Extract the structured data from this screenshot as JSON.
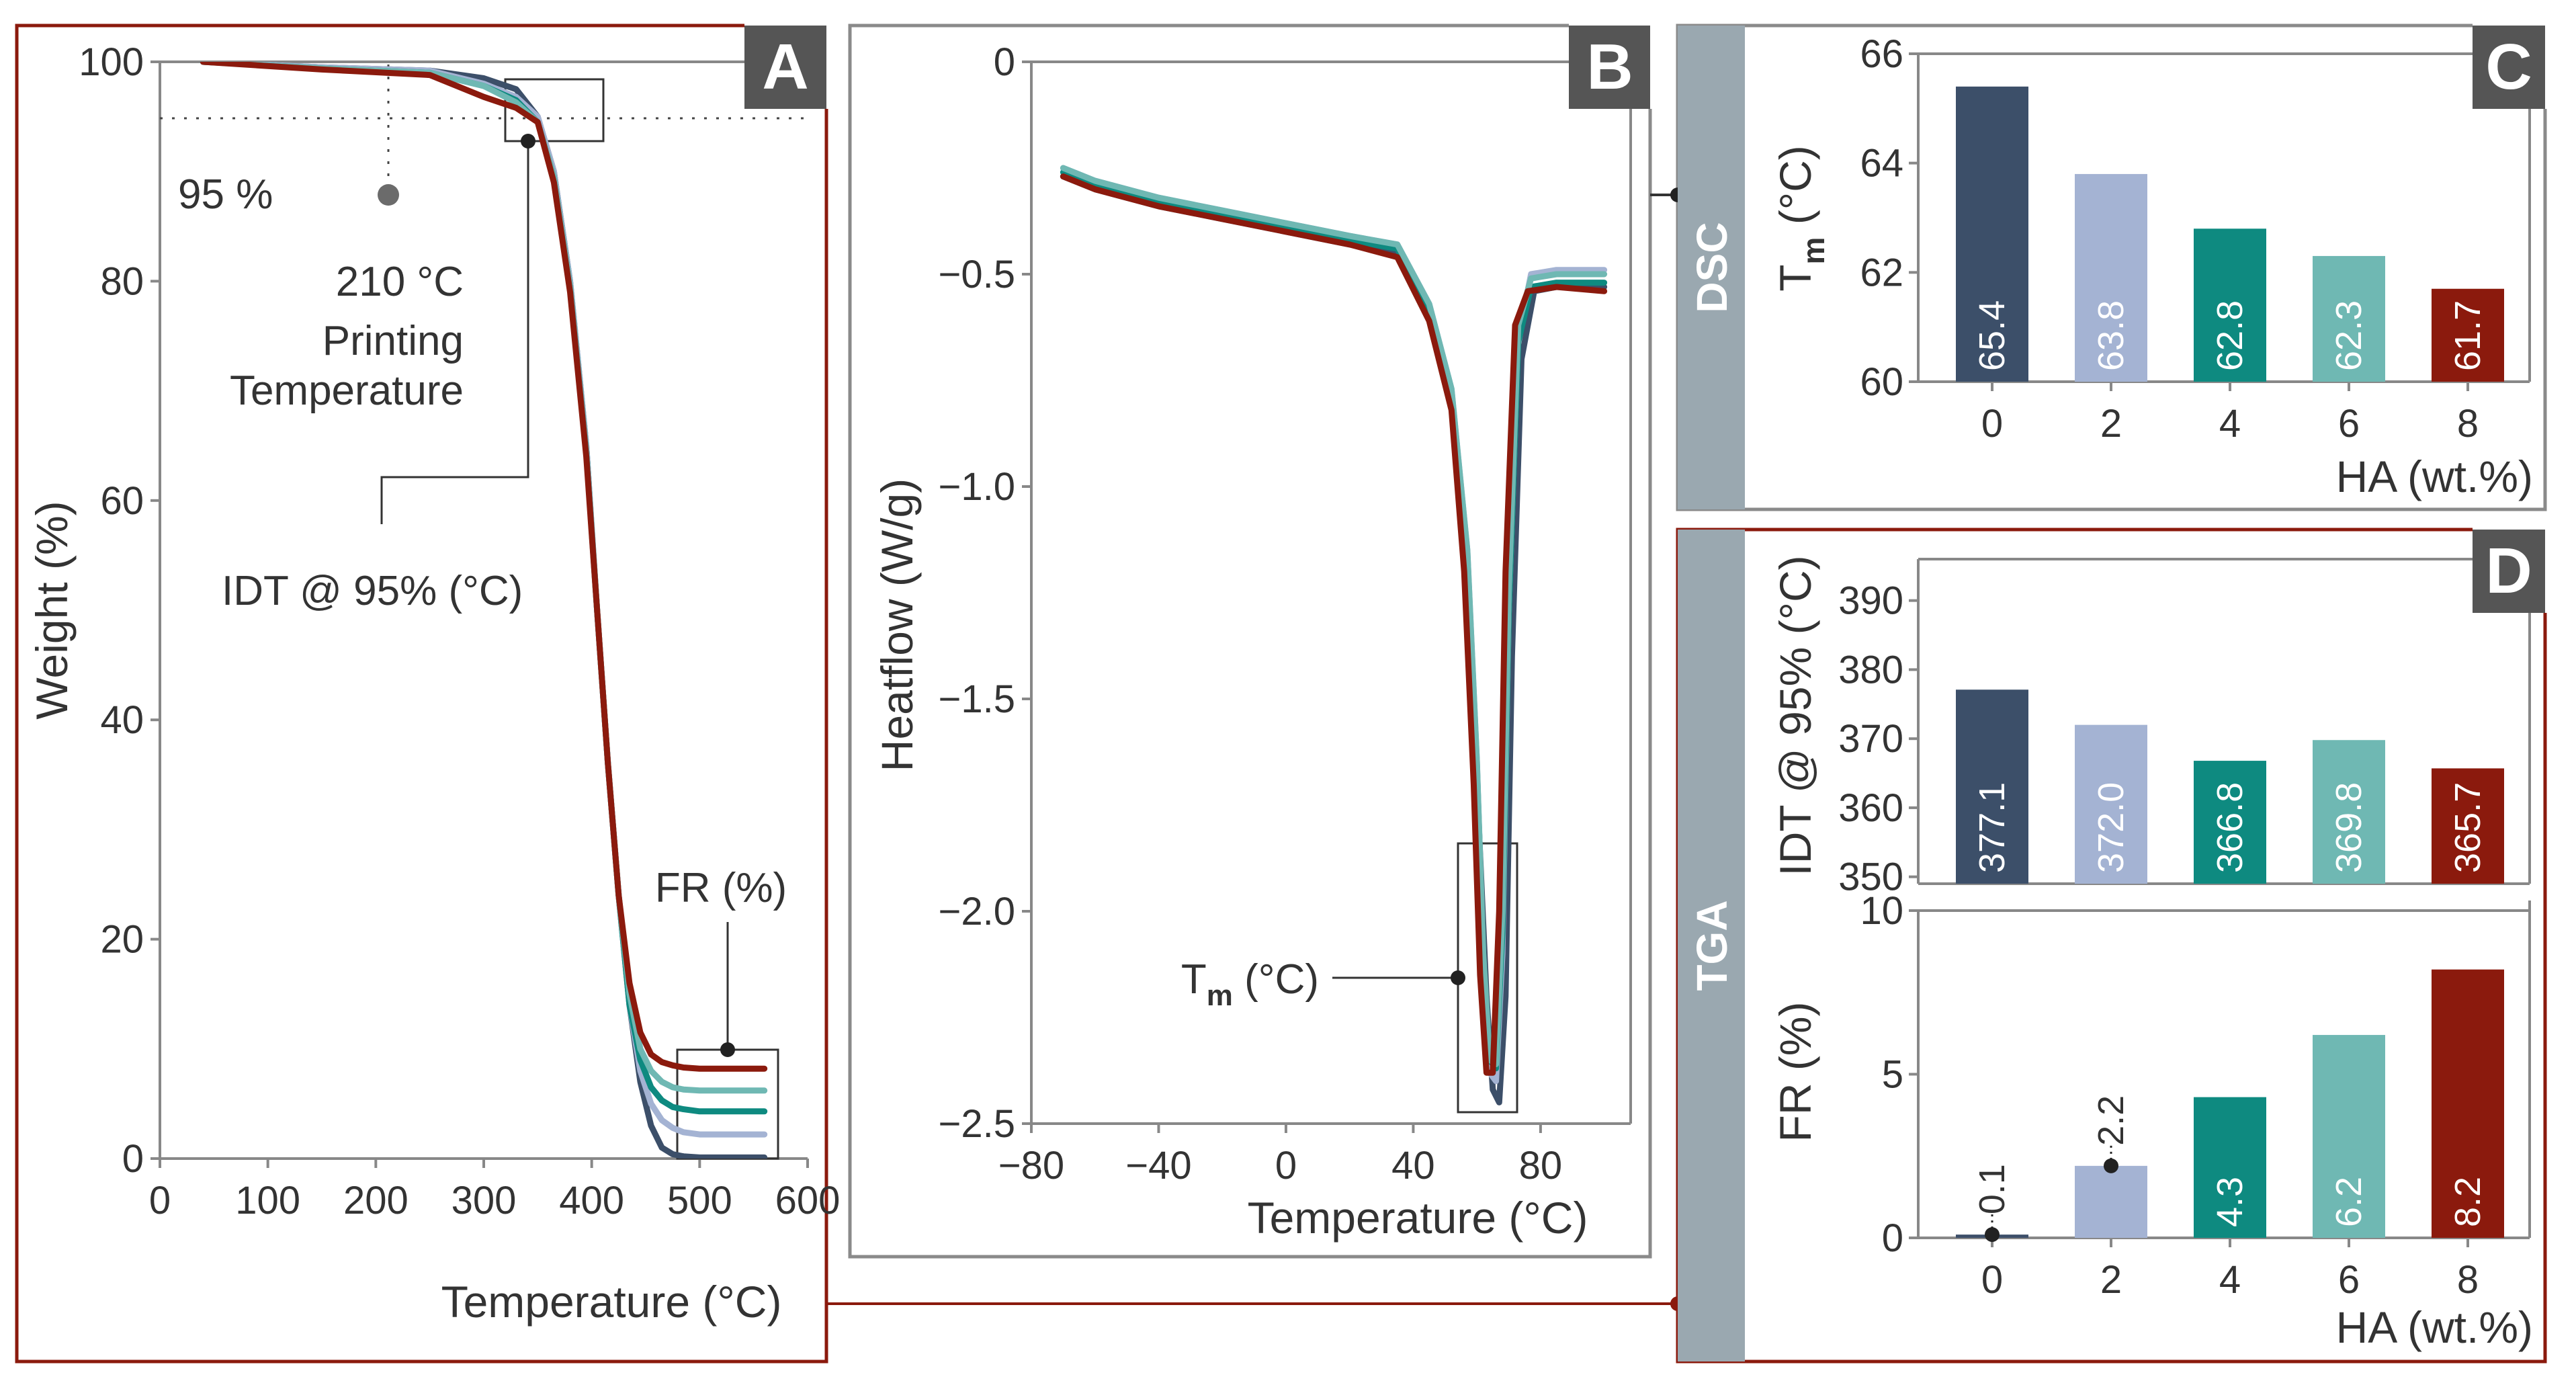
{
  "colors": {
    "hc0": "#3c4f69",
    "hc2": "#a4b3d3",
    "hc4": "#0e8a80",
    "hc6": "#6fb8b3",
    "hc8": "#8b1a0d",
    "frame_red": "#8b1a0d",
    "frame_gray": "#8a8a8a",
    "strip": "#9aa8b0",
    "badge": "#555555"
  },
  "chart_data": [
    {
      "panel": "A",
      "type": "line",
      "xlabel": "Temperature (°C)",
      "ylabel": "Weight (%)",
      "xlim": [
        0,
        600
      ],
      "ylim": [
        0,
        100
      ],
      "xticks": [
        "0",
        "100",
        "200",
        "300",
        "400",
        "500",
        "600"
      ],
      "yticks": [
        "0",
        "20",
        "40",
        "60",
        "80",
        "100"
      ],
      "series": [
        {
          "name": "0 wt.%",
          "x": [
            40,
            150,
            250,
            300,
            330,
            350,
            365,
            380,
            395,
            405,
            415,
            425,
            435,
            445,
            455,
            465,
            475,
            485,
            500,
            560
          ],
          "y": [
            100,
            99.5,
            99.2,
            98.5,
            97.5,
            95,
            90,
            80,
            65,
            50,
            36,
            24,
            14,
            7,
            3,
            1,
            0.4,
            0.2,
            0.1,
            0.1
          ]
        },
        {
          "name": "2 wt.%",
          "x": [
            40,
            150,
            250,
            300,
            330,
            350,
            365,
            380,
            395,
            405,
            415,
            425,
            435,
            445,
            455,
            465,
            475,
            485,
            500,
            560
          ],
          "y": [
            100,
            99.5,
            99.2,
            98,
            96.8,
            95,
            90,
            80,
            65,
            50,
            36,
            24,
            14,
            8,
            5,
            3.5,
            2.8,
            2.4,
            2.2,
            2.2
          ]
        },
        {
          "name": "4 wt.%",
          "x": [
            40,
            150,
            250,
            300,
            330,
            350,
            365,
            380,
            395,
            405,
            415,
            425,
            435,
            445,
            455,
            465,
            475,
            485,
            500,
            560
          ],
          "y": [
            100,
            99.4,
            99.0,
            97.8,
            96.5,
            94.5,
            89.5,
            79.5,
            64.5,
            50,
            36,
            24,
            14,
            9,
            6.5,
            5.3,
            4.7,
            4.5,
            4.3,
            4.3
          ]
        },
        {
          "name": "6 wt.%",
          "x": [
            40,
            150,
            250,
            300,
            330,
            350,
            365,
            380,
            395,
            405,
            415,
            425,
            435,
            445,
            455,
            465,
            475,
            485,
            500,
            560
          ],
          "y": [
            100,
            99.4,
            99.0,
            97.8,
            96.3,
            94.5,
            89.5,
            79.5,
            64.5,
            50,
            36,
            24,
            15,
            10,
            8,
            7,
            6.5,
            6.3,
            6.2,
            6.2
          ]
        },
        {
          "name": "8 wt.%",
          "x": [
            40,
            150,
            250,
            300,
            330,
            350,
            365,
            380,
            395,
            405,
            415,
            425,
            435,
            445,
            455,
            465,
            475,
            485,
            500,
            560
          ],
          "y": [
            100,
            99.3,
            98.8,
            96.8,
            95.8,
            94.5,
            89,
            79,
            64,
            50,
            36,
            24,
            16,
            11.5,
            9.5,
            8.8,
            8.5,
            8.3,
            8.2,
            8.2
          ]
        }
      ],
      "annotations": {
        "threshold": "95 %",
        "printing_temp": "210 °C",
        "printing_label_1": "Printing",
        "printing_label_2": "Temperature",
        "idt": "IDT @ 95% (°C)",
        "fr": "FR (%)"
      }
    },
    {
      "panel": "B",
      "type": "line",
      "xlabel": "Temperature (°C)",
      "ylabel": "Heatflow (W/g)",
      "xlim": [
        -80,
        110
      ],
      "ylim": [
        -2.5,
        0
      ],
      "xticks": [
        "−80",
        "−40",
        "0",
        "40",
        "80"
      ],
      "yticks": [
        "0",
        "−0.5",
        "−1.0",
        "−1.5",
        "−2.0",
        "−2.5"
      ],
      "series": [
        {
          "name": "0 wt.%",
          "x": [
            -70,
            -60,
            -40,
            -20,
            0,
            20,
            35,
            45,
            52,
            57,
            60,
            63,
            65,
            67,
            69,
            71,
            74,
            78,
            85,
            100
          ],
          "y": [
            -0.27,
            -0.3,
            -0.34,
            -0.37,
            -0.4,
            -0.43,
            -0.45,
            -0.6,
            -0.8,
            -1.2,
            -1.7,
            -2.2,
            -2.42,
            -2.45,
            -2.2,
            -1.4,
            -0.7,
            -0.54,
            -0.53,
            -0.53
          ]
        },
        {
          "name": "2 wt.%",
          "x": [
            -70,
            -60,
            -40,
            -20,
            0,
            20,
            35,
            45,
            52,
            57,
            60,
            62,
            64,
            66,
            68,
            70,
            73,
            77,
            85,
            100
          ],
          "y": [
            -0.25,
            -0.28,
            -0.32,
            -0.35,
            -0.38,
            -0.41,
            -0.43,
            -0.57,
            -0.77,
            -1.15,
            -1.65,
            -2.15,
            -2.38,
            -2.4,
            -2.1,
            -1.3,
            -0.65,
            -0.5,
            -0.49,
            -0.49
          ]
        },
        {
          "name": "4 wt.%",
          "x": [
            -70,
            -60,
            -40,
            -20,
            0,
            20,
            35,
            45,
            52,
            57,
            60,
            62,
            64,
            66,
            68,
            70,
            73,
            77,
            85,
            100
          ],
          "y": [
            -0.26,
            -0.29,
            -0.33,
            -0.36,
            -0.39,
            -0.42,
            -0.44,
            -0.58,
            -0.78,
            -1.16,
            -1.66,
            -2.1,
            -2.35,
            -2.37,
            -2.05,
            -1.3,
            -0.66,
            -0.53,
            -0.52,
            -0.52
          ]
        },
        {
          "name": "6 wt.%",
          "x": [
            -70,
            -60,
            -40,
            -20,
            0,
            20,
            35,
            45,
            52,
            57,
            60,
            62,
            64,
            66,
            68,
            70,
            73,
            77,
            85,
            100
          ],
          "y": [
            -0.25,
            -0.28,
            -0.32,
            -0.35,
            -0.38,
            -0.41,
            -0.43,
            -0.57,
            -0.77,
            -1.15,
            -1.65,
            -2.1,
            -2.35,
            -2.36,
            -2.0,
            -1.25,
            -0.62,
            -0.51,
            -0.5,
            -0.5
          ]
        },
        {
          "name": "8 wt.%",
          "x": [
            -70,
            -60,
            -40,
            -20,
            0,
            20,
            35,
            45,
            52,
            56,
            59,
            61,
            63,
            65,
            67,
            69,
            72,
            76,
            85,
            100
          ],
          "y": [
            -0.27,
            -0.3,
            -0.34,
            -0.37,
            -0.4,
            -0.43,
            -0.46,
            -0.61,
            -0.82,
            -1.2,
            -1.7,
            -2.15,
            -2.38,
            -2.38,
            -2.0,
            -1.2,
            -0.62,
            -0.54,
            -0.53,
            -0.54
          ]
        }
      ],
      "annotations": {
        "tm": "T",
        "tm_sub": "m",
        "tm_unit": " (°C)"
      }
    },
    {
      "panel": "C",
      "type": "bar",
      "xlabel": "HA (wt.%)",
      "ylabel": "T",
      "ylabel_sub": "m",
      "ylabel_unit": " (°C)",
      "side_label": "DSC",
      "categories": [
        "0",
        "2",
        "4",
        "6",
        "8"
      ],
      "values": [
        65.4,
        63.8,
        62.8,
        62.3,
        61.7
      ],
      "labels": [
        "65.4",
        "63.8",
        "62.8",
        "62.3",
        "61.7"
      ],
      "ylim": [
        60,
        66
      ],
      "yticks": [
        "60",
        "62",
        "64",
        "66"
      ]
    },
    {
      "panel": "D",
      "type": "bar",
      "xlabel": "",
      "ylabel": "IDT @ 95% (°C)",
      "side_label": "TGA",
      "categories": [
        "0",
        "2",
        "4",
        "6",
        "8"
      ],
      "values": [
        377.1,
        372.0,
        366.8,
        369.8,
        365.7
      ],
      "labels": [
        "377.1",
        "372.0",
        "366.8",
        "369.8",
        "365.7"
      ],
      "ylim": [
        349,
        396
      ],
      "yticks": [
        "350",
        "360",
        "370",
        "380",
        "390"
      ]
    },
    {
      "panel": "D2",
      "type": "bar",
      "xlabel": "HA (wt.%)",
      "ylabel": "FR (%)",
      "categories": [
        "0",
        "2",
        "4",
        "6",
        "8"
      ],
      "values": [
        0.1,
        2.2,
        4.3,
        6.2,
        8.2
      ],
      "labels": [
        "0.1",
        "2.2",
        "4.3",
        "6.2",
        "8.2"
      ],
      "ylim": [
        0,
        10
      ],
      "yticks": [
        "0",
        "5",
        "10"
      ]
    }
  ]
}
